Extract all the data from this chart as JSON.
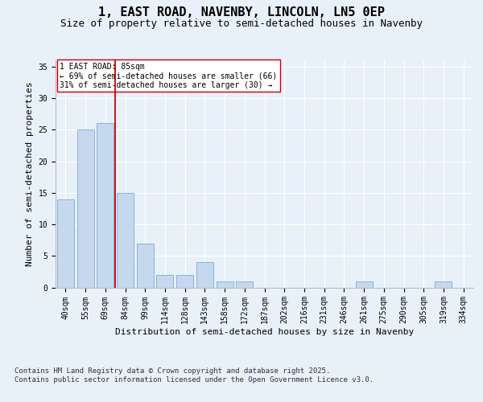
{
  "title_line1": "1, EAST ROAD, NAVENBY, LINCOLN, LN5 0EP",
  "title_line2": "Size of property relative to semi-detached houses in Navenby",
  "xlabel": "Distribution of semi-detached houses by size in Navenby",
  "ylabel": "Number of semi-detached properties",
  "categories": [
    "40sqm",
    "55sqm",
    "69sqm",
    "84sqm",
    "99sqm",
    "114sqm",
    "128sqm",
    "143sqm",
    "158sqm",
    "172sqm",
    "187sqm",
    "202sqm",
    "216sqm",
    "231sqm",
    "246sqm",
    "261sqm",
    "275sqm",
    "290sqm",
    "305sqm",
    "319sqm",
    "334sqm"
  ],
  "values": [
    14,
    25,
    26,
    15,
    7,
    2,
    2,
    4,
    1,
    1,
    0,
    0,
    0,
    0,
    0,
    1,
    0,
    0,
    0,
    1,
    0
  ],
  "bar_color": "#c5d8ed",
  "bar_edgecolor": "#7aadd4",
  "red_line_color": "#cc0000",
  "annotation_text": "1 EAST ROAD: 85sqm\n← 69% of semi-detached houses are smaller (66)\n31% of semi-detached houses are larger (30) →",
  "annotation_box_color": "#ffffff",
  "annotation_box_edgecolor": "#cc0000",
  "ylim": [
    0,
    36
  ],
  "yticks": [
    0,
    5,
    10,
    15,
    20,
    25,
    30,
    35
  ],
  "footer_text": "Contains HM Land Registry data © Crown copyright and database right 2025.\nContains public sector information licensed under the Open Government Licence v3.0.",
  "background_color": "#e8f0fa",
  "plot_background": "#e8f0fa",
  "grid_color": "#ffffff",
  "title_fontsize": 11,
  "subtitle_fontsize": 9,
  "axis_label_fontsize": 8,
  "tick_fontsize": 7,
  "annotation_fontsize": 7,
  "footer_fontsize": 6.5
}
